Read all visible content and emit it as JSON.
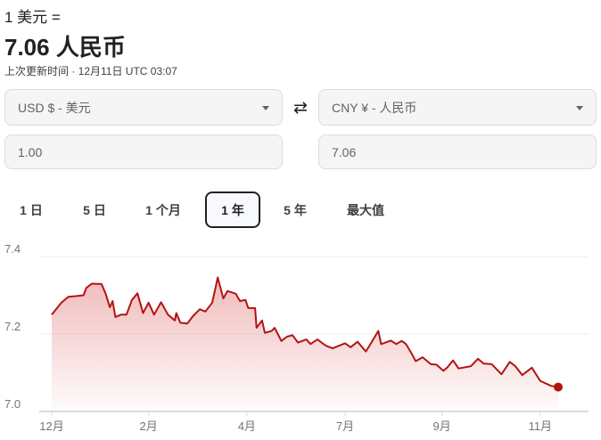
{
  "header": {
    "rate_label": "1 美元 =",
    "rate_value": "7.06 人民币",
    "updated": "上次更新时间 · 12月11日 UTC 03:07"
  },
  "converter": {
    "from_currency": "USD $ - 美元",
    "to_currency": "CNY ¥ - 人民币",
    "from_amount": "1.00",
    "to_amount": "7.06",
    "swap_icon": "swap-arrows-icon"
  },
  "tabs": [
    {
      "label": "1 日",
      "selected": false
    },
    {
      "label": "5 日",
      "selected": false
    },
    {
      "label": "1 个月",
      "selected": false
    },
    {
      "label": "1 年",
      "selected": true
    },
    {
      "label": "5 年",
      "selected": false
    },
    {
      "label": "最大值",
      "selected": false
    }
  ],
  "chart_data": {
    "type": "area",
    "line_color": "#b31412",
    "ylim": [
      7.0,
      7.4
    ],
    "yticks": [
      "7.4",
      "7.2",
      "7.0"
    ],
    "grid": true,
    "xrange": [
      "2023-12-11",
      "2024-12-11"
    ],
    "xticks": [
      {
        "label": "12月",
        "date": "2023-12-11"
      },
      {
        "label": "2月",
        "date": "2024-02-19"
      },
      {
        "label": "4月",
        "date": "2024-04-30"
      },
      {
        "label": "7月",
        "date": "2024-07-10"
      },
      {
        "label": "9月",
        "date": "2024-09-18"
      },
      {
        "label": "11月",
        "date": "2024-11-28"
      }
    ],
    "points": [
      [
        "2023-12-11",
        7.25
      ],
      [
        "2023-12-18",
        7.281
      ],
      [
        "2023-12-23",
        7.296
      ],
      [
        "2023-12-29",
        7.298
      ],
      [
        "2024-01-03",
        7.3
      ],
      [
        "2024-01-05",
        7.319
      ],
      [
        "2024-01-09",
        7.33
      ],
      [
        "2024-01-16",
        7.329
      ],
      [
        "2024-01-19",
        7.304
      ],
      [
        "2024-01-22",
        7.269
      ],
      [
        "2024-01-24",
        7.285
      ],
      [
        "2024-01-26",
        7.244
      ],
      [
        "2024-01-30",
        7.25
      ],
      [
        "2024-02-03",
        7.25
      ],
      [
        "2024-02-07",
        7.288
      ],
      [
        "2024-02-11",
        7.305
      ],
      [
        "2024-02-15",
        7.254
      ],
      [
        "2024-02-19",
        7.281
      ],
      [
        "2024-02-23",
        7.25
      ],
      [
        "2024-02-28",
        7.282
      ],
      [
        "2024-03-04",
        7.25
      ],
      [
        "2024-03-09",
        7.235
      ],
      [
        "2024-03-10",
        7.254
      ],
      [
        "2024-03-13",
        7.229
      ],
      [
        "2024-03-18",
        7.227
      ],
      [
        "2024-03-22",
        7.246
      ],
      [
        "2024-03-27",
        7.264
      ],
      [
        "2024-03-31",
        7.258
      ],
      [
        "2024-04-05",
        7.281
      ],
      [
        "2024-04-09",
        7.346
      ],
      [
        "2024-04-13",
        7.292
      ],
      [
        "2024-04-16",
        7.311
      ],
      [
        "2024-04-22",
        7.304
      ],
      [
        "2024-04-25",
        7.285
      ],
      [
        "2024-04-29",
        7.288
      ],
      [
        "2024-05-01",
        7.267
      ],
      [
        "2024-05-06",
        7.267
      ],
      [
        "2024-05-07",
        7.216
      ],
      [
        "2024-05-11",
        7.235
      ],
      [
        "2024-05-13",
        7.203
      ],
      [
        "2024-05-18",
        7.208
      ],
      [
        "2024-05-20",
        7.216
      ],
      [
        "2024-05-25",
        7.182
      ],
      [
        "2024-05-29",
        7.193
      ],
      [
        "2024-06-02",
        7.197
      ],
      [
        "2024-06-06",
        7.178
      ],
      [
        "2024-06-12",
        7.186
      ],
      [
        "2024-06-15",
        7.174
      ],
      [
        "2024-06-20",
        7.186
      ],
      [
        "2024-06-26",
        7.17
      ],
      [
        "2024-07-01",
        7.163
      ],
      [
        "2024-07-10",
        7.176
      ],
      [
        "2024-07-14",
        7.166
      ],
      [
        "2024-07-19",
        7.18
      ],
      [
        "2024-07-25",
        7.155
      ],
      [
        "2024-07-29",
        7.178
      ],
      [
        "2024-08-03",
        7.208
      ],
      [
        "2024-08-05",
        7.174
      ],
      [
        "2024-08-12",
        7.183
      ],
      [
        "2024-08-16",
        7.174
      ],
      [
        "2024-08-20",
        7.182
      ],
      [
        "2024-08-23",
        7.174
      ],
      [
        "2024-08-27",
        7.15
      ],
      [
        "2024-08-30",
        7.13
      ],
      [
        "2024-09-04",
        7.14
      ],
      [
        "2024-09-10",
        7.122
      ],
      [
        "2024-09-14",
        7.121
      ],
      [
        "2024-09-19",
        7.105
      ],
      [
        "2024-09-22",
        7.114
      ],
      [
        "2024-09-26",
        7.132
      ],
      [
        "2024-09-30",
        7.111
      ],
      [
        "2024-10-09",
        7.117
      ],
      [
        "2024-10-14",
        7.136
      ],
      [
        "2024-10-18",
        7.124
      ],
      [
        "2024-10-24",
        7.122
      ],
      [
        "2024-10-31",
        7.096
      ],
      [
        "2024-11-06",
        7.128
      ],
      [
        "2024-11-10",
        7.117
      ],
      [
        "2024-11-15",
        7.094
      ],
      [
        "2024-11-22",
        7.113
      ],
      [
        "2024-11-28",
        7.079
      ],
      [
        "2024-12-06",
        7.066
      ],
      [
        "2024-12-11",
        7.063
      ]
    ]
  }
}
